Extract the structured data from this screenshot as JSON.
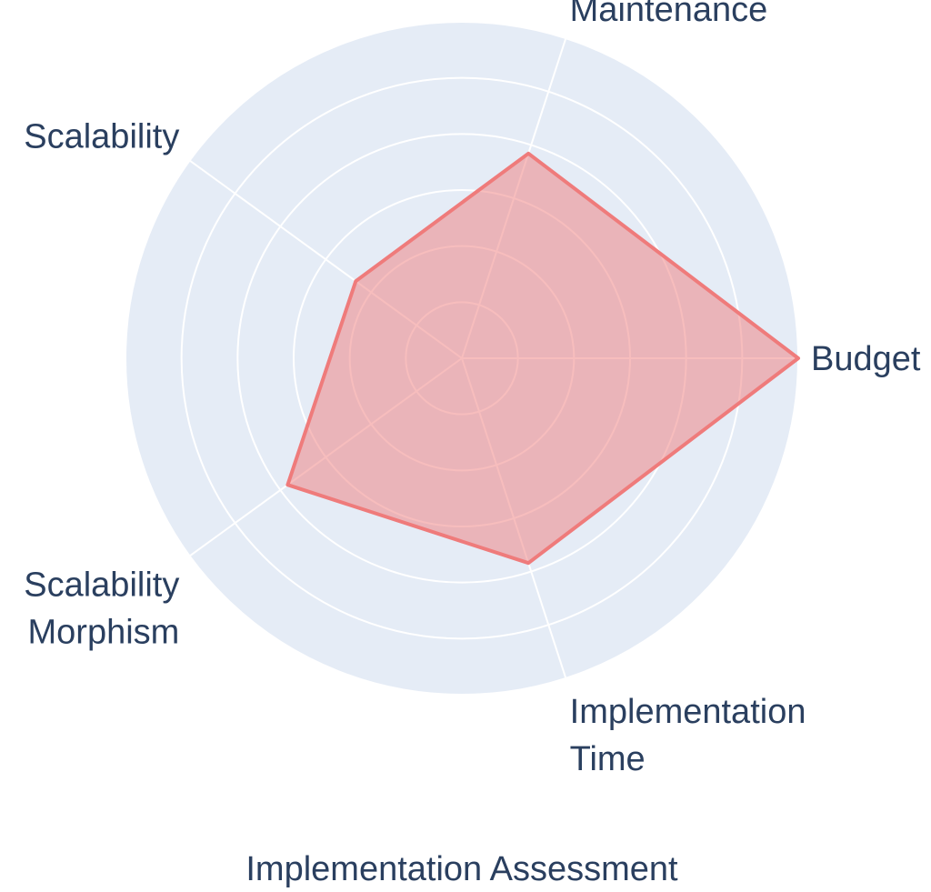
{
  "chart_data": {
    "type": "radar",
    "title": "Implementation Assessment",
    "axes": [
      {
        "label_lines": [
          "Budget"
        ],
        "value": 1.0
      },
      {
        "label_lines": [
          "Maintenance"
        ],
        "value": 0.64
      },
      {
        "label_lines": [
          "Scalability"
        ],
        "value": 0.39
      },
      {
        "label_lines": [
          "Scalability",
          "Morphism"
        ],
        "value": 0.64
      },
      {
        "label_lines": [
          "Implementation",
          "Time"
        ],
        "value": 0.64
      }
    ],
    "range": [
      0,
      1
    ],
    "rings": 6,
    "grid": true,
    "colors": {
      "plot_background": "#e5ecf6",
      "grid": "#ffffff",
      "series_line": "#ef7b7b",
      "series_fill": "#ef7b7b",
      "text": "#2a3f5f"
    }
  }
}
